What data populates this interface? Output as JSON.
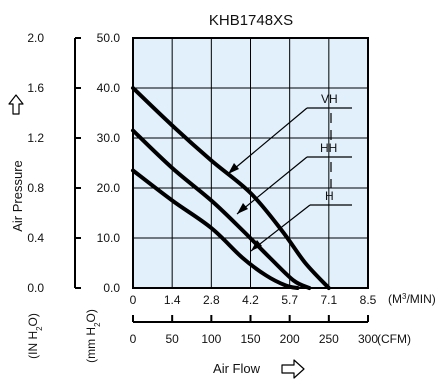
{
  "chart_data": {
    "type": "line",
    "title": "KHB1748XS",
    "ylabel": "Air Pressure",
    "xlabel": "Air Flow",
    "y_axes": [
      {
        "unit_html": "IN H<tspan baseline-shift='sub' font-size='7'>2</tspan>O",
        "unit": "IN H2O",
        "range": [
          0.0,
          2.0
        ],
        "ticks": [
          "0.0",
          "0.4",
          "0.8",
          "1.2",
          "1.6",
          "2.0"
        ]
      },
      {
        "unit": "mm H2O",
        "range": [
          0.0,
          50.0
        ],
        "ticks": [
          "0.0",
          "10.0",
          "20.0",
          "30.0",
          "40.0",
          "50.0"
        ]
      }
    ],
    "x_axes": [
      {
        "unit": "(M3/MIN)",
        "range": [
          0,
          8.5
        ],
        "ticks": [
          "0",
          "1.4",
          "2.8",
          "4.2",
          "5.7",
          "7.1",
          "8.5"
        ]
      },
      {
        "unit": "(CFM)",
        "range": [
          0,
          300
        ],
        "ticks": [
          "0",
          "50",
          "100",
          "150",
          "200",
          "250",
          "300"
        ]
      }
    ],
    "grid": true,
    "ylim": [
      0,
      50
    ],
    "xlim": [
      0,
      300
    ],
    "series": [
      {
        "name": "VH",
        "x": [
          0,
          50,
          100,
          150,
          190,
          220,
          250
        ],
        "y": [
          40,
          32.5,
          25.5,
          19,
          11.5,
          5,
          0
        ]
      },
      {
        "name": "HH",
        "x": [
          0,
          50,
          100,
          140,
          175,
          205,
          225
        ],
        "y": [
          31.5,
          24,
          17.5,
          11.5,
          6,
          1.5,
          0
        ]
      },
      {
        "name": "H",
        "x": [
          0,
          50,
          100,
          140,
          170,
          195,
          210
        ],
        "y": [
          23.5,
          17.5,
          12,
          6,
          2.5,
          0.5,
          0
        ]
      }
    ]
  }
}
